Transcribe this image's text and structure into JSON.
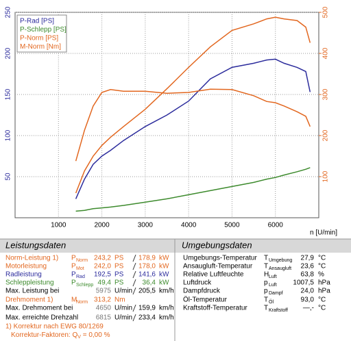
{
  "chart_data": {
    "type": "line",
    "xlabel": "n [U/min]",
    "x": [
      1400,
      1600,
      1800,
      2000,
      2200,
      2500,
      3000,
      3500,
      4000,
      4500,
      5000,
      5500,
      5800,
      6000,
      6200,
      6500,
      6700,
      6800
    ],
    "xlim": [
      0,
      7000
    ],
    "xticks": [
      1000,
      2000,
      3000,
      4000,
      5000,
      6000
    ],
    "ylim": [
      0,
      250
    ],
    "yticks": [
      50,
      100,
      150,
      200,
      250
    ],
    "y2lim": [
      0,
      500
    ],
    "y2ticks": [
      100,
      200,
      300,
      400,
      500
    ],
    "grid": true,
    "legend": "upper left",
    "series": [
      {
        "name": "P-Rad [PS]",
        "color": "#2b2b9c",
        "values": [
          23,
          47,
          65,
          75,
          82,
          94,
          111,
          125,
          142,
          169,
          183,
          188,
          192,
          193,
          188,
          183,
          178,
          153
        ]
      },
      {
        "name": "P-Schlepp [PS]",
        "color": "#3c8a2c",
        "values": [
          8,
          9,
          11,
          12,
          13,
          15,
          19,
          23,
          28,
          33,
          38,
          43,
          47,
          49,
          52,
          56,
          59,
          61
        ]
      },
      {
        "name": "P-Norm [PS]",
        "color": "#e2661e",
        "values": [
          30,
          57,
          75,
          88,
          98,
          111,
          132,
          157,
          183,
          208,
          228,
          236,
          242,
          244,
          242,
          240,
          232,
          213
        ]
      },
      {
        "name": "M-Norm [Nm]",
        "color": "#e2661e",
        "axis": "y2",
        "values": [
          138,
          213,
          272,
          305,
          312,
          308,
          308,
          303,
          305,
          313,
          312,
          297,
          283,
          280,
          272,
          258,
          247,
          222
        ]
      }
    ]
  },
  "leistungsdaten": {
    "title": "Leistungsdaten",
    "rows": [
      {
        "label": "Norm-Leistung  1)",
        "symbol": "P",
        "sub": "Norm",
        "value": "243,2",
        "unit": "PS",
        "value2": "178,9",
        "unit2": "kW",
        "color": "#e2661e"
      },
      {
        "label": "Motorleistung",
        "symbol": "P",
        "sub": "Mot",
        "value": "242,0",
        "unit": "PS",
        "value2": "178,0",
        "unit2": "kW",
        "color": "#e2661e"
      },
      {
        "label": "Radleistung",
        "symbol": "P",
        "sub": "Rad",
        "value": "192,5",
        "unit": "PS",
        "value2": "141,6",
        "unit2": "kW",
        "color": "#2b2b9c"
      },
      {
        "label": "Schleppleistung",
        "symbol": "P",
        "sub": "Schlepp",
        "value": "49,4",
        "unit": "PS",
        "value2": "36,4",
        "unit2": "kW",
        "color": "#3c8a2c"
      },
      {
        "label": "Max. Leistung bei",
        "value": "5975",
        "unit": "U/min",
        "value2": "205,5",
        "unit2": "km/h",
        "color": "#000000"
      },
      {
        "label": "Drehmoment  1)",
        "symbol": "M",
        "sub": "Norm",
        "value": "313,2",
        "unit": "Nm",
        "color": "#e2661e"
      },
      {
        "label": "Max. Drehmoment bei",
        "value": "4650",
        "unit": "U/min",
        "value2": "159,9",
        "unit2": "km/h",
        "color": "#000000"
      },
      {
        "label": "Max. erreichte Drehzahl",
        "value": "6815",
        "unit": "U/min",
        "value2": "233,4",
        "unit2": "km/h",
        "color": "#000000"
      }
    ],
    "footnote": "1) Korrektur nach EWG 80/1269",
    "correction": "Korrektur-Faktoren:  Q",
    "correction_sub": "V",
    "correction_value": " =   0,00 %"
  },
  "umgebungsdaten": {
    "title": "Umgebungsdaten",
    "rows": [
      {
        "label": "Umgebungs-Temperatur",
        "symbol": "T",
        "sub": "Umgebung",
        "value": "27,9",
        "unit": "°C"
      },
      {
        "label": "Ansaugluft-Temperatur",
        "symbol": "T",
        "sub": "Ansaugluft",
        "value": "23,6",
        "unit": "°C"
      },
      {
        "label": "Relative Luftfeuchte",
        "symbol": "H",
        "sub": "Luft",
        "value": "63,8",
        "unit": "%"
      },
      {
        "label": "Luftdruck",
        "symbol": "p",
        "sub": "Luft",
        "value": "1007,5",
        "unit": "hPa"
      },
      {
        "label": "Dampfdruck",
        "symbol": "p",
        "sub": "Dampf",
        "value": "24,0",
        "unit": "hPa"
      },
      {
        "label": "Öl-Temperatur",
        "symbol": "T",
        "sub": "Öl",
        "value": "93,0",
        "unit": "°C"
      },
      {
        "label": "Kraftstoff-Temperatur",
        "symbol": "T",
        "sub": "Kraftstoff",
        "value": "—,-",
        "unit": "°C"
      }
    ]
  }
}
